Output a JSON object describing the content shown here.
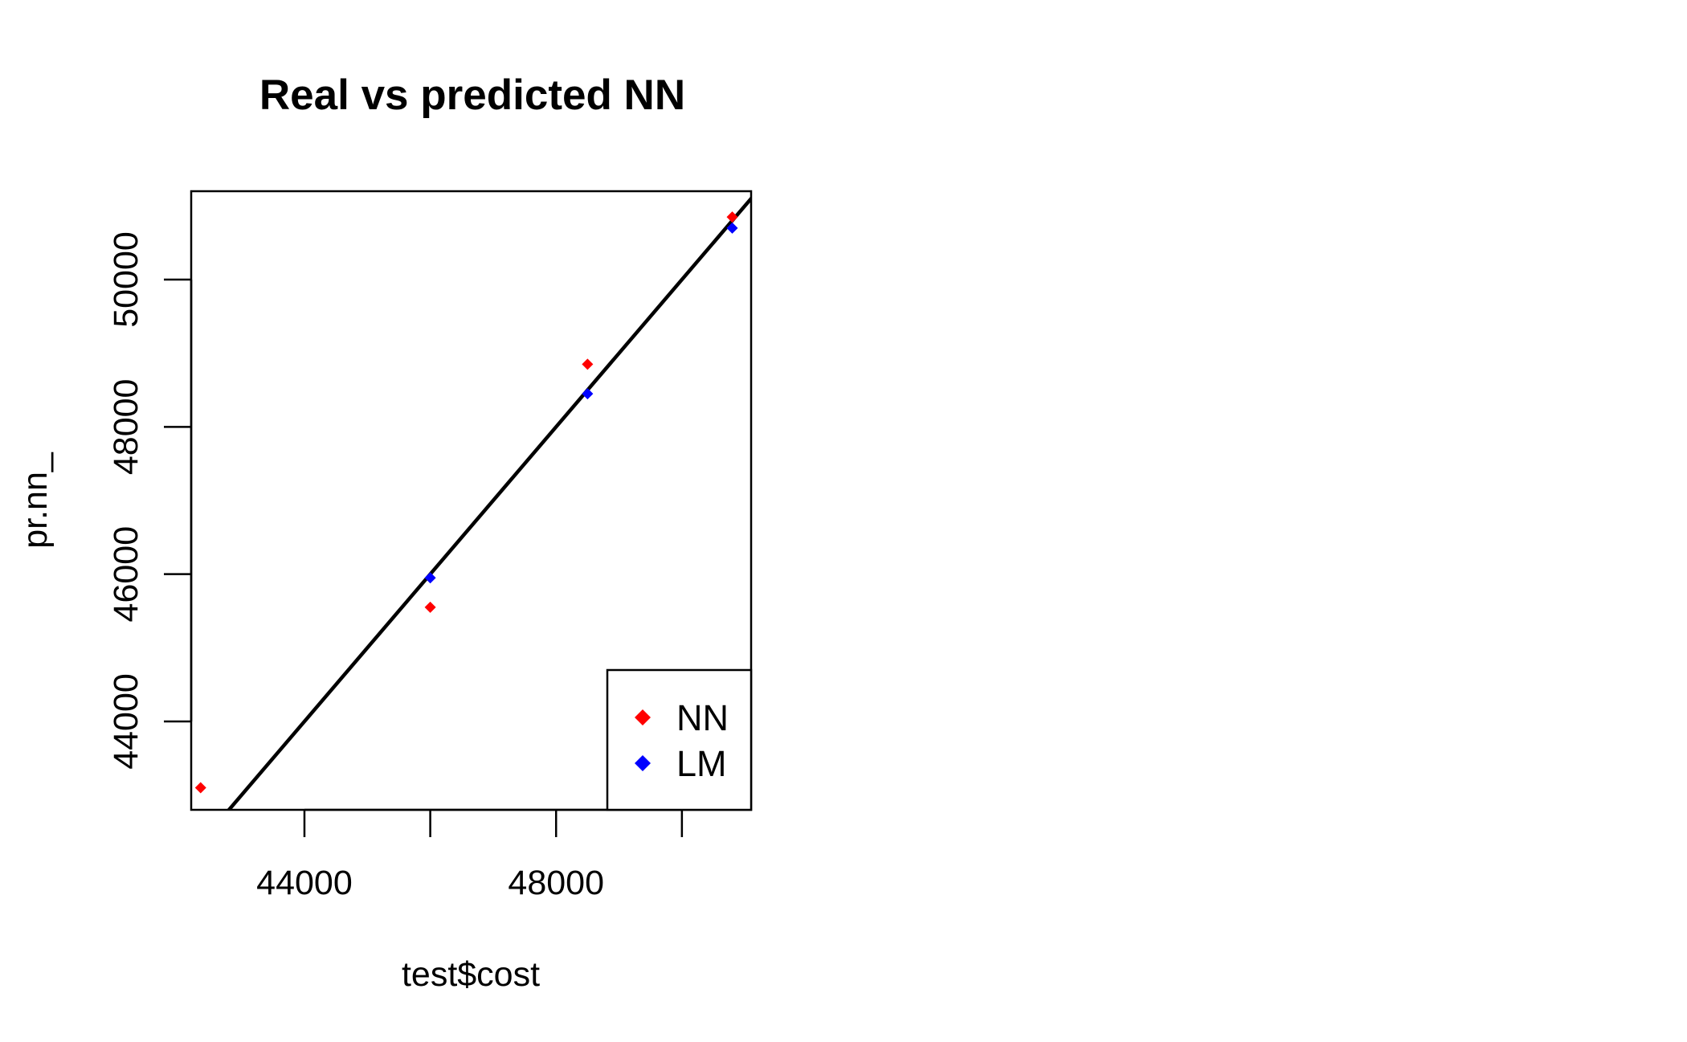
{
  "chart_data": {
    "type": "scatter",
    "title": "Real vs predicted NN",
    "xlabel": "test$cost",
    "ylabel": "pr.nn_",
    "xlim": [
      42200,
      51100
    ],
    "ylim": [
      42800,
      51200
    ],
    "xticks": [
      44000,
      46000,
      48000,
      50000
    ],
    "xtick_labels": [
      "44000",
      "",
      "48000",
      ""
    ],
    "yticks": [
      44000,
      46000,
      48000,
      50000
    ],
    "ytick_labels": [
      "44000",
      "46000",
      "48000",
      "50000"
    ],
    "grid": false,
    "legend_position": "bottom-right",
    "series": [
      {
        "name": "NN",
        "color": "#ff0000",
        "marker": "diamond",
        "x": [
          42350,
          46000,
          48500,
          50800
        ],
        "y": [
          43100,
          45550,
          48850,
          50850
        ]
      },
      {
        "name": "LM",
        "color": "#0000ff",
        "marker": "diamond",
        "x": [
          46000,
          48500,
          50800
        ],
        "y": [
          45950,
          48450,
          50700
        ]
      }
    ],
    "reference_line": {
      "type": "abline",
      "intercept": 0,
      "slope": 1,
      "color": "#000000"
    }
  }
}
